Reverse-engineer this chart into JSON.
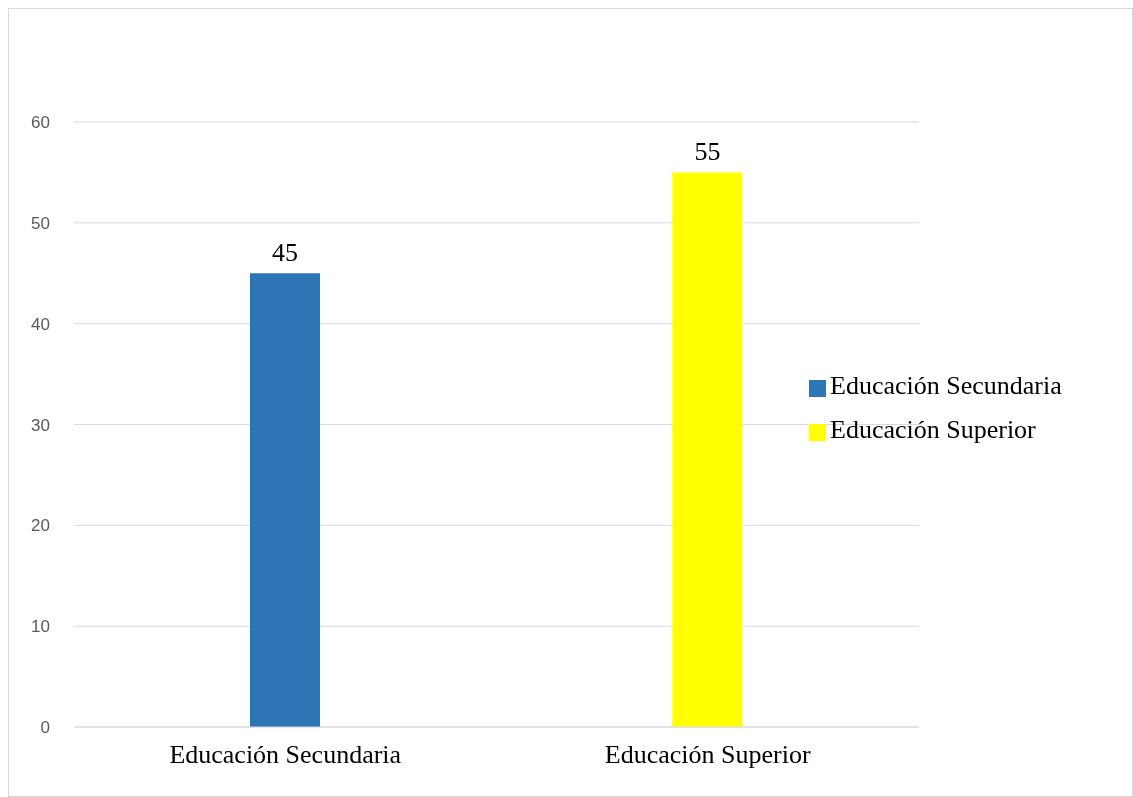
{
  "chart_data": {
    "type": "bar",
    "categories": [
      "Educación Secundaria",
      "Educación Superior"
    ],
    "series": [
      {
        "name": "Educación Secundaria",
        "color": "#2e75b6",
        "values": [
          45,
          null
        ]
      },
      {
        "name": "Educación Superior",
        "color": "#ffff00",
        "values": [
          null,
          55
        ]
      }
    ],
    "ylim": [
      0,
      60
    ],
    "yticks": [
      0,
      10,
      20,
      30,
      40,
      50,
      60
    ],
    "grid": "y",
    "data_labels": true,
    "legend": "right"
  }
}
